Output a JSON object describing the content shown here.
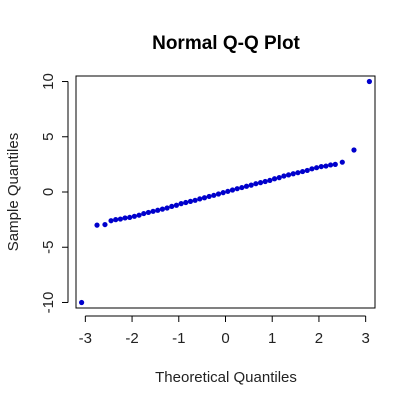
{
  "chart_data": {
    "type": "scatter",
    "title": "Normal Q-Q Plot",
    "xlabel": "Theoretical Quantiles",
    "ylabel": "Sample Quantiles",
    "xlim": [
      -3.2,
      3.2
    ],
    "ylim": [
      -10.5,
      10.5
    ],
    "xticks": [
      -3,
      -2,
      -1,
      0,
      1,
      2,
      3
    ],
    "yticks": [
      -10,
      -5,
      0,
      5,
      10
    ],
    "grid": false,
    "point_color": "#0000cc",
    "points": [
      {
        "x": -3.08,
        "y": -10.0
      },
      {
        "x": -2.75,
        "y": -3.0
      },
      {
        "x": -2.58,
        "y": -2.95
      },
      {
        "x": -2.45,
        "y": -2.6
      },
      {
        "x": -2.35,
        "y": -2.5
      },
      {
        "x": -2.25,
        "y": -2.45
      },
      {
        "x": -2.15,
        "y": -2.35
      },
      {
        "x": -2.05,
        "y": -2.3
      },
      {
        "x": -1.95,
        "y": -2.2
      },
      {
        "x": -1.85,
        "y": -2.1
      },
      {
        "x": -1.75,
        "y": -1.95
      },
      {
        "x": -1.65,
        "y": -1.85
      },
      {
        "x": -1.55,
        "y": -1.75
      },
      {
        "x": -1.45,
        "y": -1.65
      },
      {
        "x": -1.35,
        "y": -1.55
      },
      {
        "x": -1.25,
        "y": -1.45
      },
      {
        "x": -1.15,
        "y": -1.3
      },
      {
        "x": -1.05,
        "y": -1.2
      },
      {
        "x": -0.95,
        "y": -1.05
      },
      {
        "x": -0.85,
        "y": -0.95
      },
      {
        "x": -0.75,
        "y": -0.85
      },
      {
        "x": -0.65,
        "y": -0.75
      },
      {
        "x": -0.55,
        "y": -0.62
      },
      {
        "x": -0.45,
        "y": -0.52
      },
      {
        "x": -0.35,
        "y": -0.4
      },
      {
        "x": -0.25,
        "y": -0.3
      },
      {
        "x": -0.15,
        "y": -0.18
      },
      {
        "x": -0.05,
        "y": -0.06
      },
      {
        "x": 0.05,
        "y": 0.06
      },
      {
        "x": 0.15,
        "y": 0.18
      },
      {
        "x": 0.25,
        "y": 0.3
      },
      {
        "x": 0.35,
        "y": 0.4
      },
      {
        "x": 0.45,
        "y": 0.52
      },
      {
        "x": 0.55,
        "y": 0.62
      },
      {
        "x": 0.65,
        "y": 0.75
      },
      {
        "x": 0.75,
        "y": 0.85
      },
      {
        "x": 0.85,
        "y": 0.95
      },
      {
        "x": 0.95,
        "y": 1.05
      },
      {
        "x": 1.05,
        "y": 1.2
      },
      {
        "x": 1.15,
        "y": 1.3
      },
      {
        "x": 1.25,
        "y": 1.45
      },
      {
        "x": 1.35,
        "y": 1.55
      },
      {
        "x": 1.45,
        "y": 1.65
      },
      {
        "x": 1.55,
        "y": 1.75
      },
      {
        "x": 1.65,
        "y": 1.85
      },
      {
        "x": 1.75,
        "y": 1.95
      },
      {
        "x": 1.85,
        "y": 2.1
      },
      {
        "x": 1.95,
        "y": 2.2
      },
      {
        "x": 2.05,
        "y": 2.3
      },
      {
        "x": 2.15,
        "y": 2.35
      },
      {
        "x": 2.25,
        "y": 2.45
      },
      {
        "x": 2.35,
        "y": 2.5
      },
      {
        "x": 2.5,
        "y": 2.7
      },
      {
        "x": 2.75,
        "y": 3.8
      },
      {
        "x": 3.08,
        "y": 10.0
      }
    ]
  }
}
